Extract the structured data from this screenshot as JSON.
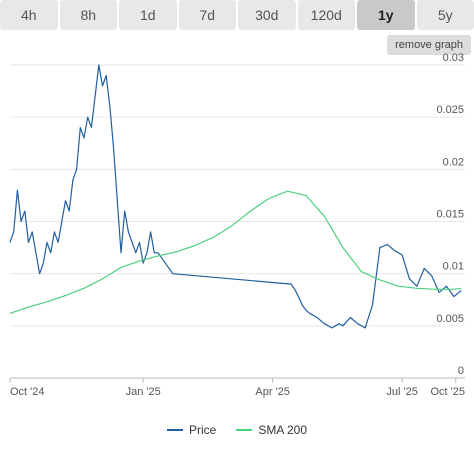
{
  "tabs": [
    {
      "label": "4h",
      "active": false
    },
    {
      "label": "8h",
      "active": false
    },
    {
      "label": "1d",
      "active": false
    },
    {
      "label": "7d",
      "active": false
    },
    {
      "label": "30d",
      "active": false
    },
    {
      "label": "120d",
      "active": false
    },
    {
      "label": "1y",
      "active": true
    },
    {
      "label": "5y",
      "active": false
    }
  ],
  "remove_graph_label": "remove graph",
  "chart_data": {
    "type": "line",
    "x_ticks": [
      "Oct '24",
      "Jan '25",
      "Apr '25",
      "Jul '25",
      "Oct '25"
    ],
    "y_ticks": [
      "0",
      "0.005",
      "0.01",
      "0.015",
      "0.02",
      "0.025",
      "0.03"
    ],
    "ylim": [
      0,
      0.03
    ],
    "xlim_months": [
      0,
      12.3
    ],
    "grid": true,
    "legend_placement": "bottom",
    "series": [
      {
        "name": "Price",
        "color": "#1f5f9f",
        "x": [
          0,
          0.1,
          0.2,
          0.3,
          0.4,
          0.5,
          0.6,
          0.7,
          0.8,
          0.9,
          1.0,
          1.1,
          1.2,
          1.3,
          1.4,
          1.5,
          1.6,
          1.7,
          1.8,
          1.9,
          2.0,
          2.1,
          2.2,
          2.3,
          2.4,
          2.5,
          2.6,
          2.7,
          2.8,
          2.9,
          3.0,
          3.1,
          3.2,
          3.3,
          3.4,
          3.5,
          3.6,
          3.7,
          3.8,
          3.9,
          4.0,
          4.2,
          4.4,
          7.6,
          7.7,
          7.8,
          7.9,
          8.0,
          8.1,
          8.2,
          8.3,
          8.4,
          8.5,
          8.6,
          8.7,
          8.8,
          8.9,
          9.0,
          9.2,
          9.4,
          9.6,
          9.8,
          10.0,
          10.2,
          10.4,
          10.6,
          10.8,
          11.0,
          11.2,
          11.4,
          11.6,
          11.8,
          12.0,
          12.2
        ],
        "y": [
          0.013,
          0.014,
          0.018,
          0.015,
          0.016,
          0.013,
          0.014,
          0.012,
          0.01,
          0.011,
          0.013,
          0.012,
          0.014,
          0.013,
          0.015,
          0.017,
          0.016,
          0.019,
          0.02,
          0.024,
          0.023,
          0.025,
          0.024,
          0.027,
          0.03,
          0.028,
          0.029,
          0.026,
          0.022,
          0.017,
          0.012,
          0.016,
          0.014,
          0.013,
          0.012,
          0.013,
          0.011,
          0.012,
          0.014,
          0.012,
          0.012,
          0.011,
          0.01,
          0.009,
          0.0085,
          0.0078,
          0.007,
          0.0065,
          0.0062,
          0.006,
          0.0058,
          0.0055,
          0.0052,
          0.005,
          0.0048,
          0.005,
          0.0052,
          0.005,
          0.0058,
          0.0052,
          0.0048,
          0.007,
          0.0125,
          0.0128,
          0.0122,
          0.0118,
          0.0095,
          0.0088,
          0.0105,
          0.0098,
          0.0082,
          0.0088,
          0.0078,
          0.0084
        ]
      },
      {
        "name": "SMA 200",
        "color": "#4ccf7f",
        "x": [
          0,
          0.5,
          1.0,
          1.5,
          2.0,
          2.5,
          3.0,
          3.5,
          4.0,
          4.5,
          5.0,
          5.5,
          6.0,
          6.5,
          7.0,
          7.5,
          8.0,
          8.5,
          9.0,
          9.5,
          10.0,
          10.5,
          11.0,
          11.5,
          12.0,
          12.2
        ],
        "y": [
          0.0062,
          0.0068,
          0.0073,
          0.0079,
          0.0086,
          0.0095,
          0.0106,
          0.0112,
          0.0117,
          0.0121,
          0.0127,
          0.0135,
          0.0146,
          0.016,
          0.0172,
          0.0179,
          0.0175,
          0.0155,
          0.0125,
          0.0102,
          0.0094,
          0.0088,
          0.0086,
          0.0085,
          0.0085,
          0.0086
        ]
      }
    ]
  },
  "legend": [
    {
      "name": "Price",
      "color": "#1f5f9f"
    },
    {
      "name": "SMA 200",
      "color": "#4ccf7f"
    }
  ]
}
